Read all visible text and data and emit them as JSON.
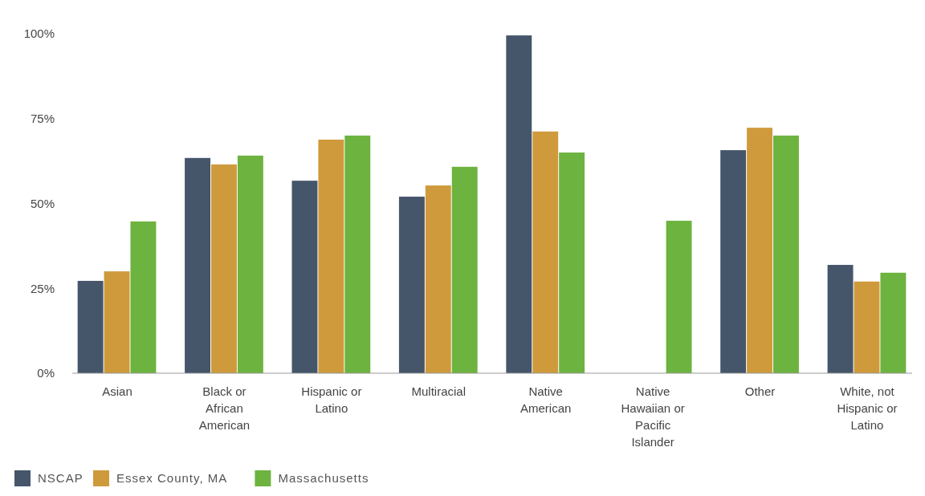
{
  "chart_data": {
    "type": "bar",
    "categories": [
      "Asian",
      "Black or African American",
      "Hispanic or Latino",
      "Multiracial",
      "Native American",
      "Native Hawaiian or Pacific Islander",
      "Other",
      "White, not Hispanic or Latino"
    ],
    "series": [
      {
        "name": "NSCAP",
        "color": "#45566b",
        "values": [
          27.2,
          63.4,
          56.7,
          52.0,
          99.5,
          null,
          65.7,
          31.9
        ]
      },
      {
        "name": "Essex County, MA",
        "color": "#cf9a3c",
        "values": [
          30.0,
          61.5,
          68.8,
          55.3,
          71.2,
          null,
          72.3,
          27.0
        ]
      },
      {
        "name": "Massachusetts",
        "color": "#6db33f",
        "values": [
          44.7,
          64.1,
          70.0,
          60.8,
          65.0,
          44.9,
          70.0,
          29.6
        ]
      }
    ],
    "ylim": [
      0,
      100
    ],
    "yticks": [
      {
        "value": 0,
        "label": "0%"
      },
      {
        "value": 25,
        "label": "25%"
      },
      {
        "value": 50,
        "label": "50%"
      },
      {
        "value": 75,
        "label": "75%"
      },
      {
        "value": 100,
        "label": "100%"
      }
    ],
    "grid": false,
    "legend": "bottom"
  }
}
